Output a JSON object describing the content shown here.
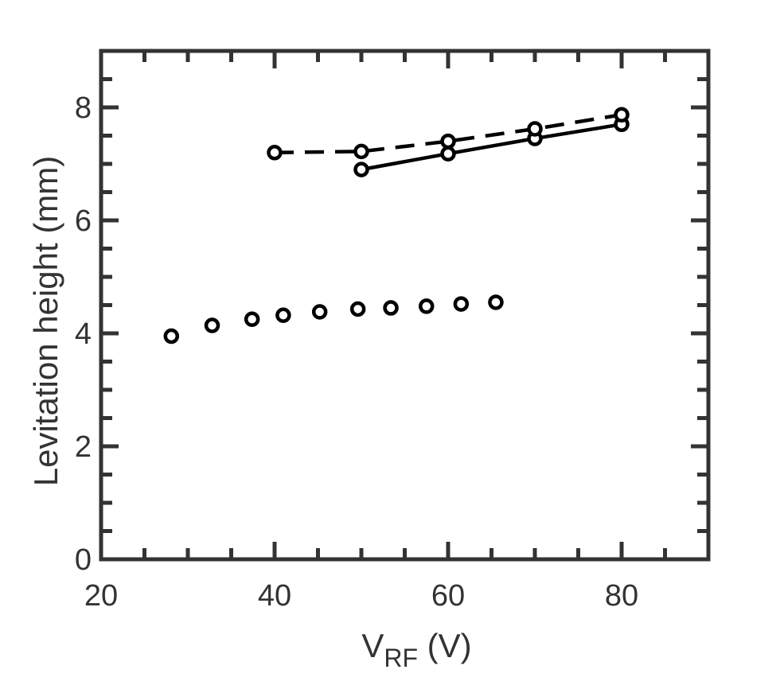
{
  "chart_data": {
    "type": "scatter",
    "title": "",
    "xlabel": {
      "main": "V",
      "sub": "RF",
      "unit": " (V)"
    },
    "ylabel": "Levitation height (mm)",
    "xlim": [
      20,
      90
    ],
    "ylim": [
      0,
      9
    ],
    "x_ticks": [
      20,
      40,
      60,
      80
    ],
    "y_ticks": [
      0,
      2,
      4,
      6,
      8
    ],
    "x_tick_labels": [
      "20",
      "40",
      "60",
      "80"
    ],
    "y_tick_labels": [
      "0",
      "2",
      "4",
      "6",
      "8"
    ],
    "x_minor_step": 5,
    "y_minor_step": 0.5,
    "grid": false,
    "legend": "none",
    "color": "#000000",
    "series": [
      {
        "line": "solid",
        "marker": "circle-open",
        "x": [
          50,
          60,
          70,
          80
        ],
        "y": [
          6.9,
          7.18,
          7.45,
          7.7
        ]
      },
      {
        "line": "dashed",
        "marker": "circle-open",
        "x": [
          40,
          50,
          60,
          70,
          80
        ],
        "y": [
          7.2,
          7.22,
          7.4,
          7.62,
          7.87
        ]
      },
      {
        "line": "none",
        "marker": "circle-open",
        "x": [
          28.1,
          32.8,
          37.4,
          41.0,
          45.2,
          49.6,
          53.4,
          57.5,
          61.5,
          65.5
        ],
        "y": [
          3.95,
          4.14,
          4.25,
          4.32,
          4.38,
          4.43,
          4.45,
          4.48,
          4.52,
          4.55
        ]
      }
    ]
  }
}
